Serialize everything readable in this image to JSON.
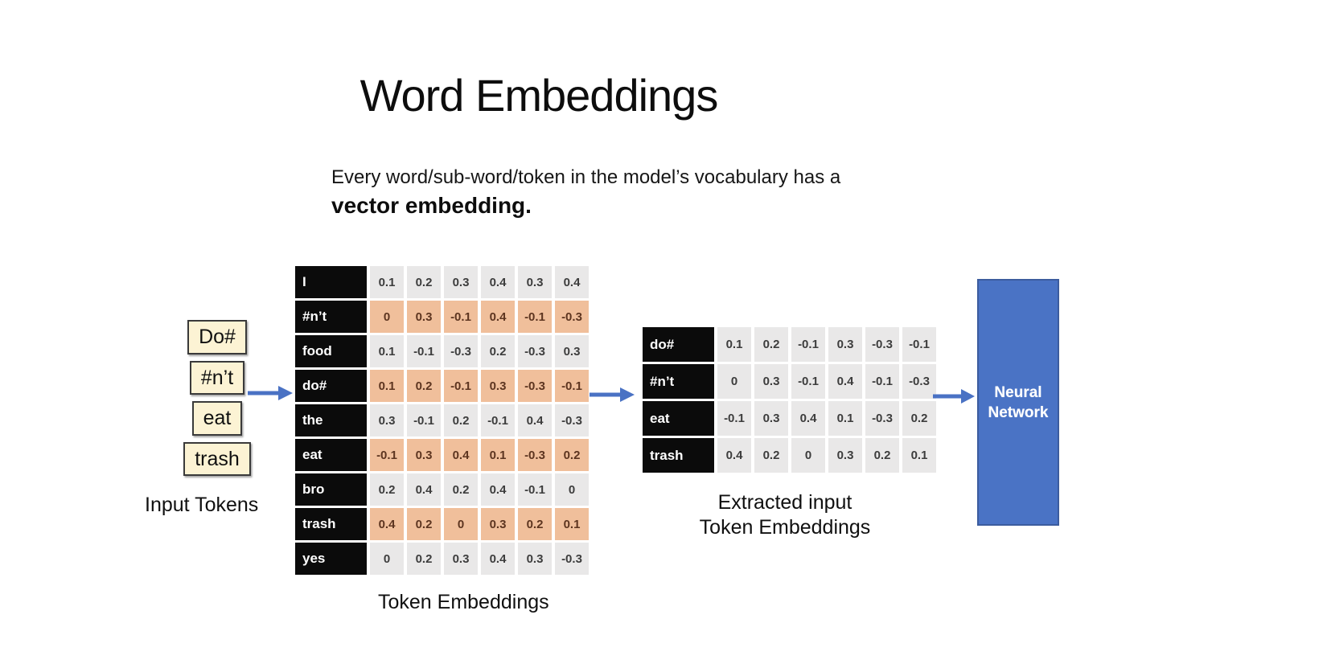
{
  "slide": {
    "title": "Word Embeddings",
    "subtitle_line1": "Every word/sub-word/token in the model’s vocabulary has a",
    "subtitle_line2": "vector embedding.",
    "input_tokens": {
      "label": "Input Tokens",
      "tokens": [
        "Do#",
        "#n’t",
        "eat",
        "trash"
      ]
    },
    "token_embeddings_table": {
      "label": "Token Embeddings",
      "rows": [
        {
          "token": "I",
          "values": [
            "0.1",
            "0.2",
            "0.3",
            "0.4",
            "0.3",
            "0.4"
          ],
          "highlight": false
        },
        {
          "token": "#n’t",
          "values": [
            "0",
            "0.3",
            "-0.1",
            "0.4",
            "-0.1",
            "-0.3"
          ],
          "highlight": true
        },
        {
          "token": "food",
          "values": [
            "0.1",
            "-0.1",
            "-0.3",
            "0.2",
            "-0.3",
            "0.3"
          ],
          "highlight": false
        },
        {
          "token": "do#",
          "values": [
            "0.1",
            "0.2",
            "-0.1",
            "0.3",
            "-0.3",
            "-0.1"
          ],
          "highlight": true
        },
        {
          "token": "the",
          "values": [
            "0.3",
            "-0.1",
            "0.2",
            "-0.1",
            "0.4",
            "-0.3"
          ],
          "highlight": false
        },
        {
          "token": "eat",
          "values": [
            "-0.1",
            "0.3",
            "0.4",
            "0.1",
            "-0.3",
            "0.2"
          ],
          "highlight": true
        },
        {
          "token": "bro",
          "values": [
            "0.2",
            "0.4",
            "0.2",
            "0.4",
            "-0.1",
            "0"
          ],
          "highlight": false
        },
        {
          "token": "trash",
          "values": [
            "0.4",
            "0.2",
            "0",
            "0.3",
            "0.2",
            "0.1"
          ],
          "highlight": true
        },
        {
          "token": "yes",
          "values": [
            "0",
            "0.2",
            "0.3",
            "0.4",
            "0.3",
            "-0.3"
          ],
          "highlight": false
        }
      ]
    },
    "extracted_table": {
      "label_line1": "Extracted input",
      "label_line2": "Token Embeddings",
      "rows": [
        {
          "token": "do#",
          "values": [
            "0.1",
            "0.2",
            "-0.1",
            "0.3",
            "-0.3",
            "-0.1"
          ],
          "highlight": false
        },
        {
          "token": "#n’t",
          "values": [
            "0",
            "0.3",
            "-0.1",
            "0.4",
            "-0.1",
            "-0.3"
          ],
          "highlight": false
        },
        {
          "token": "eat",
          "values": [
            "-0.1",
            "0.3",
            "0.4",
            "0.1",
            "-0.3",
            "0.2"
          ],
          "highlight": false
        },
        {
          "token": "trash",
          "values": [
            "0.4",
            "0.2",
            "0",
            "0.3",
            "0.2",
            "0.1"
          ],
          "highlight": false
        }
      ]
    },
    "neural_network": {
      "label_line1": "Neural",
      "label_line2": "Network"
    },
    "colors": {
      "highlight_row": "#f0bf9b",
      "normal_cell": "#e9e8e8",
      "token_cell_bg": "#0b0b0b",
      "arrow_blue": "#4a72c4",
      "nn_box": "#4a73c5",
      "input_box_bg": "#fcf3d4"
    }
  }
}
